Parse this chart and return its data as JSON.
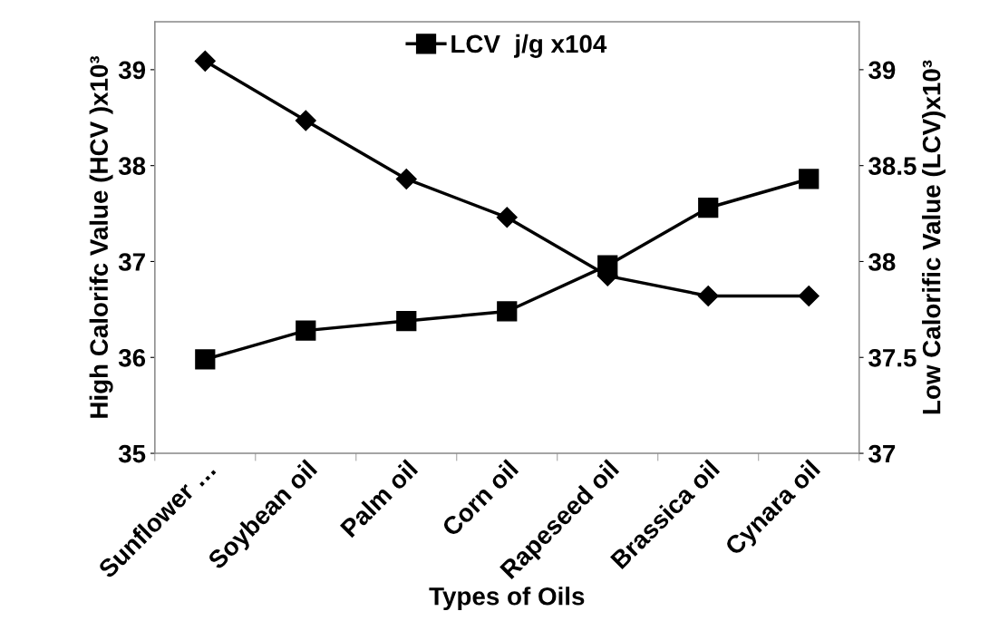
{
  "chart_data": {
    "type": "line",
    "xlabel": "Types of Oils",
    "ylabel": "High Calorifc Value (HCV )x10³",
    "y2label": "Low Calorific Value (LCV)x10³",
    "categories": [
      "Sunflower …",
      "Soybean oil",
      "Palm oil",
      "Corn oil",
      "Rapeseed oil",
      "Brassica oil",
      "Cynara oil"
    ],
    "series": [
      {
        "color": "#000000",
        "marker": "diamond",
        "values": [
          39.09,
          38.47,
          37.86,
          37.46,
          36.85,
          36.64,
          36.64
        ]
      },
      {
        "name": "LCV  j/g x104",
        "color": "#000000",
        "marker": "square",
        "axis": "y2",
        "values": [
          37.49,
          37.64,
          37.69,
          37.74,
          37.98,
          38.28,
          38.43
        ]
      }
    ],
    "ylim": [
      35,
      39.5
    ],
    "yticks": [
      35,
      36,
      37,
      38,
      39
    ],
    "y2lim": [
      37,
      39.25
    ],
    "y2ticks": [
      37,
      37.5,
      38,
      38.5,
      39
    ],
    "grid": false,
    "legend": "top"
  }
}
